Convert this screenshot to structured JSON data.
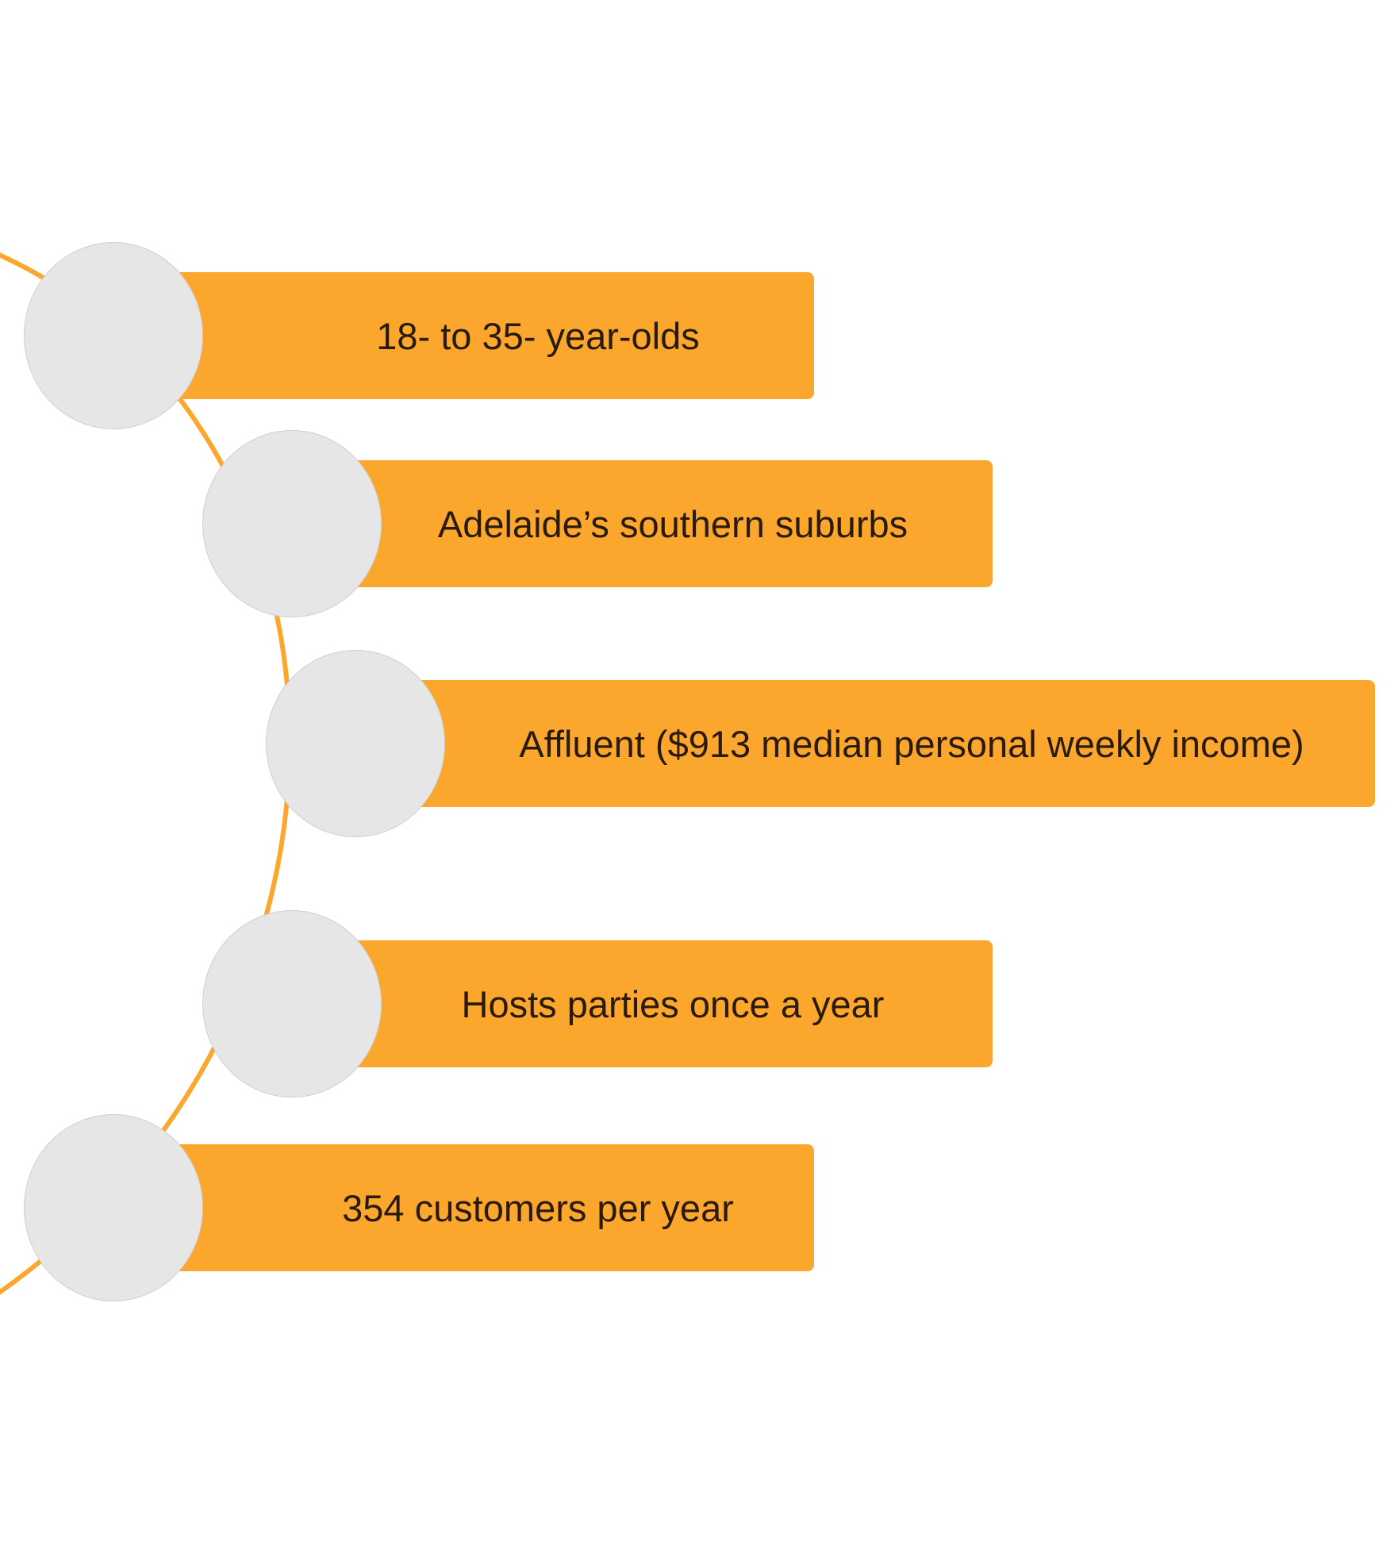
{
  "colors": {
    "accent": "#FBA72D",
    "node_fill": "#E6E6E6",
    "node_border": "#CFCFCF",
    "text": "#2A1A0C",
    "background": "#FFFFFF"
  },
  "items": [
    {
      "label": "18- to 35- year-olds"
    },
    {
      "label": "Adelaide’s southern suburbs"
    },
    {
      "label": "Affluent ($913 median personal weekly income)"
    },
    {
      "label": "Hosts parties once a year"
    },
    {
      "label": "354 customers per year"
    }
  ]
}
